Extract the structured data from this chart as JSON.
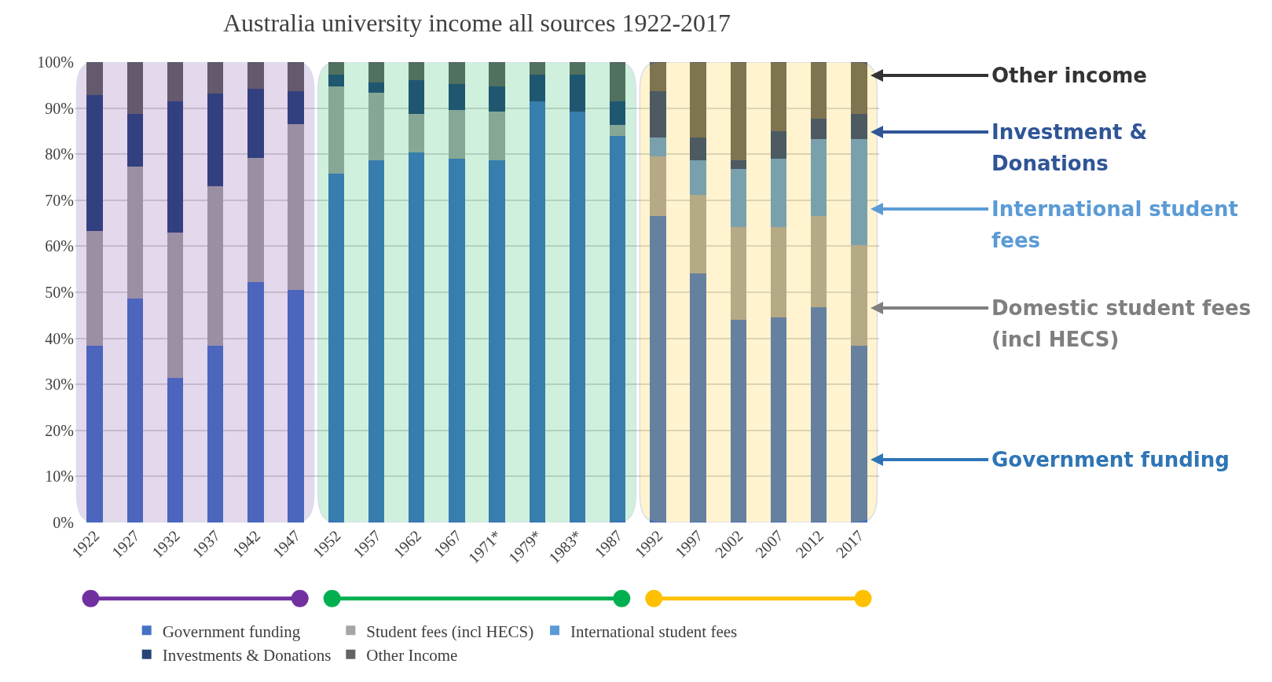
{
  "chart_data": {
    "type": "bar",
    "stacked": true,
    "title": "Australia university income all sources 1922-2017",
    "categories": [
      "1922",
      "1927",
      "1932",
      "1937",
      "1942",
      "1947",
      "1952",
      "1957",
      "1962",
      "1967",
      "1971*",
      "1979*",
      "1983*",
      "1987",
      "1992",
      "1997",
      "2002",
      "2007",
      "2012",
      "2017"
    ],
    "series": [
      {
        "name": "Government funding",
        "color": "#4472c4",
        "values": [
          38.4,
          48.6,
          31.4,
          38.4,
          52.3,
          50.5,
          75.7,
          78.6,
          80.4,
          79.0,
          78.6,
          91.5,
          89.3,
          84.0,
          66.5,
          54.1,
          44.0,
          44.5,
          46.7,
          38.4
        ]
      },
      {
        "name": "Student fees (incl HECS)",
        "color": "#a5a5a5",
        "values": [
          24.9,
          28.7,
          31.6,
          34.7,
          26.9,
          36.0,
          19.0,
          14.8,
          8.4,
          10.6,
          10.6,
          0,
          0,
          2.4,
          13.0,
          17.1,
          20.2,
          19.7,
          19.8,
          21.8
        ]
      },
      {
        "name": "International student fees",
        "color": "#5b9bd5",
        "values": [
          null,
          null,
          null,
          null,
          null,
          null,
          null,
          null,
          null,
          null,
          null,
          null,
          null,
          null,
          4.2,
          7.5,
          12.6,
          14.8,
          16.8,
          23.1
        ]
      },
      {
        "name": "Investments & Donations",
        "color": "#264478",
        "values": [
          29.5,
          11.4,
          28.5,
          20.1,
          15.0,
          7.2,
          2.6,
          2.2,
          7.2,
          5.6,
          5.5,
          5.8,
          8.0,
          5.1,
          10.0,
          4.9,
          1.8,
          6.0,
          4.4,
          5.4
        ]
      },
      {
        "name": "Other Income",
        "color": "#636363",
        "values": [
          7.2,
          11.3,
          8.5,
          6.8,
          5.8,
          6.3,
          2.7,
          4.4,
          4.0,
          4.8,
          5.3,
          2.7,
          2.7,
          8.5,
          6.3,
          16.4,
          21.4,
          15.0,
          12.3,
          11.3
        ]
      }
    ],
    "ylim": [
      0,
      100
    ],
    "yticks": [
      {
        "value": 0,
        "label": "0%"
      },
      {
        "value": 10,
        "label": "10%"
      },
      {
        "value": 20,
        "label": "20%"
      },
      {
        "value": 30,
        "label": "30%"
      },
      {
        "value": 40,
        "label": "40%"
      },
      {
        "value": 50,
        "label": "50%"
      },
      {
        "value": 60,
        "label": "60%"
      },
      {
        "value": 70,
        "label": "70%"
      },
      {
        "value": 80,
        "label": "80%"
      },
      {
        "value": 90,
        "label": "90%"
      },
      {
        "value": 100,
        "label": "100%"
      }
    ],
    "grid": "y",
    "legend": "bottom",
    "bands": [
      {
        "axis": "x",
        "from": "1922",
        "to": "1947",
        "color": "#7030a0"
      },
      {
        "axis": "x",
        "from": "1952",
        "to": "1987",
        "color": "#00b050"
      },
      {
        "axis": "x",
        "from": "1992",
        "to": "2017",
        "color": "#ffc000"
      }
    ],
    "annotations": [
      "Other income",
      "Investment & Donations",
      "International student fees",
      "Domestic student fees (incl HECS)",
      "Government funding"
    ]
  }
}
